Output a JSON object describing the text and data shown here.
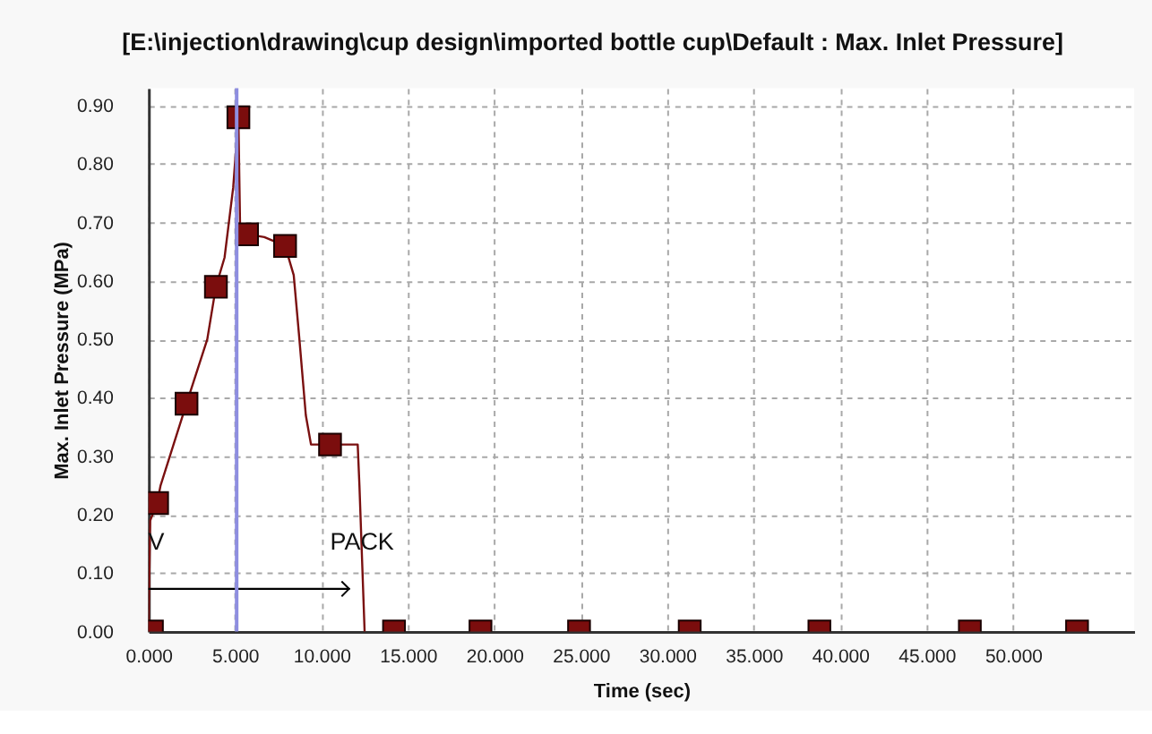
{
  "chart_data": {
    "type": "line",
    "title": "[E:\\injection\\drawing\\cup design\\imported bottle cup\\Default : Max. Inlet Pressure]",
    "xlabel": "Time (sec)",
    "ylabel": "Max. Inlet Pressure (MPa)",
    "xlim": [
      0,
      57
    ],
    "ylim": [
      0,
      0.93
    ],
    "xticks": [
      {
        "value": 0,
        "label": "0.000"
      },
      {
        "value": 5,
        "label": "5.000"
      },
      {
        "value": 10,
        "label": "10.000"
      },
      {
        "value": 15,
        "label": "15.000"
      },
      {
        "value": 20,
        "label": "20.000"
      },
      {
        "value": 25,
        "label": "25.000"
      },
      {
        "value": 30,
        "label": "30.000"
      },
      {
        "value": 35,
        "label": "35.000"
      },
      {
        "value": 40,
        "label": "40.000"
      },
      {
        "value": 45,
        "label": "45.000"
      },
      {
        "value": 50,
        "label": "50.000"
      }
    ],
    "yticks": [
      {
        "value": 0,
        "label": "0.00"
      },
      {
        "value": 0.1,
        "label": "0.10"
      },
      {
        "value": 0.2,
        "label": "0.20"
      },
      {
        "value": 0.3,
        "label": "0.30"
      },
      {
        "value": 0.4,
        "label": "0.40"
      },
      {
        "value": 0.5,
        "label": "0.50"
      },
      {
        "value": 0.6,
        "label": "0.60"
      },
      {
        "value": 0.7,
        "label": "0.70"
      },
      {
        "value": 0.8,
        "label": "0.80"
      },
      {
        "value": 0.9,
        "label": "0.90"
      }
    ],
    "grid": true,
    "series": [
      {
        "color": "#7a1010",
        "x": [
          0,
          0.1,
          0.5,
          0.7,
          2.2,
          3.4,
          3.9,
          4.4,
          4.9,
          5.2,
          5.3,
          5.7,
          6.7,
          7.9,
          8.4,
          8.7,
          9.1,
          9.4,
          10.5,
          12.1,
          12.2,
          12.5
        ],
        "values": [
          0,
          0.19,
          0.22,
          0.25,
          0.39,
          0.5,
          0.59,
          0.64,
          0.76,
          0.88,
          0.69,
          0.68,
          0.675,
          0.66,
          0.61,
          0.51,
          0.37,
          0.32,
          0.32,
          0.32,
          0.25,
          0
        ]
      },
      {
        "type": "scatter",
        "color": "#7b0d0d",
        "marker": "square",
        "x": [
          0.2,
          0.5,
          2.2,
          3.9,
          5.2,
          5.7,
          7.9,
          10.5,
          14.2,
          19.2,
          24.9,
          31.3,
          38.8,
          47.5,
          53.7
        ],
        "values": [
          0,
          0.22,
          0.39,
          0.59,
          0.88,
          0.68,
          0.66,
          0.32,
          0,
          0,
          0,
          0,
          0,
          0,
          0
        ]
      },
      {
        "type": "line",
        "color": "#000000",
        "x": [
          0,
          11.6
        ],
        "values": [
          0.073,
          0.073
        ]
      }
    ],
    "ref_lines": [
      {
        "axis": "x",
        "value": 5.1,
        "color": "#8e8ee0"
      }
    ],
    "annotations": [
      {
        "text": "V",
        "x": 0.45,
        "y": 0.152
      },
      {
        "text": "PACK",
        "x": 12.35,
        "y": 0.152
      }
    ]
  }
}
